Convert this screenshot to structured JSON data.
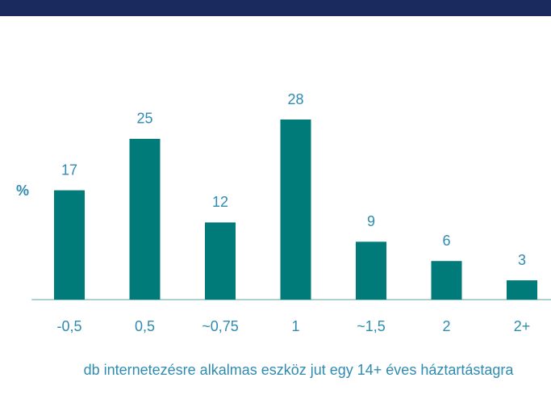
{
  "chart_data": {
    "type": "bar",
    "y_label": "%",
    "x_label": "db internetezésre alkalmas eszköz jut egy 14+ éves háztartástagra",
    "categories": [
      "-0,5",
      "0,5",
      "~0,75",
      "1",
      "~1,5",
      "2",
      "2+"
    ],
    "values": [
      17,
      25,
      12,
      28,
      9,
      6,
      3
    ],
    "color": "#007b7a",
    "ylim": [
      0,
      28
    ]
  }
}
